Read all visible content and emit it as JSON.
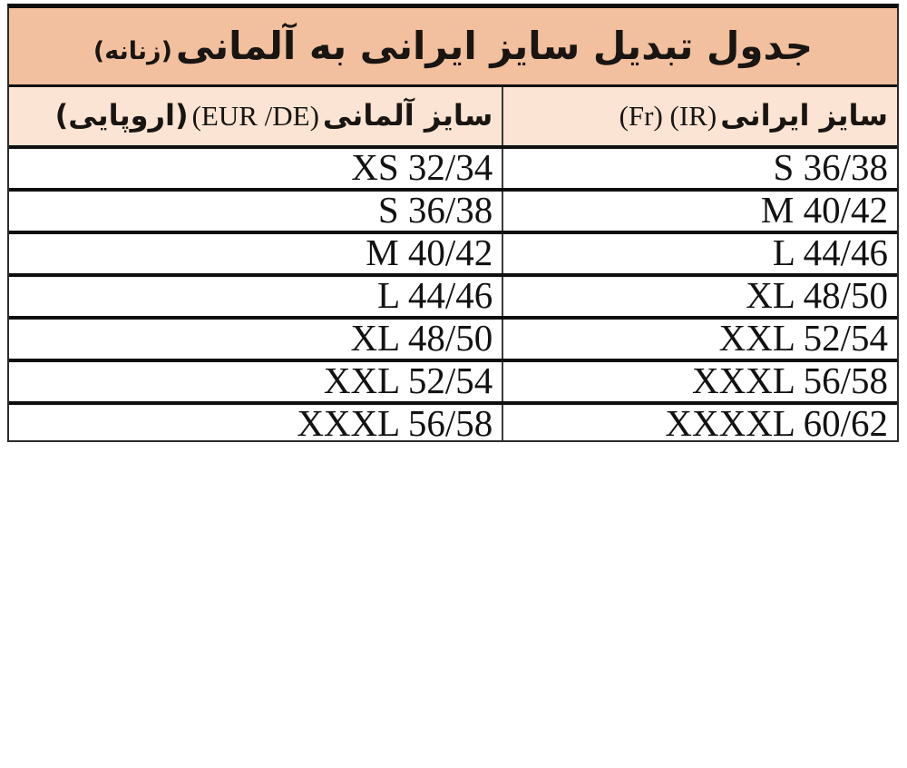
{
  "colors": {
    "title_bg": "#f2c09e",
    "header_bg": "#fbe4d3",
    "border": "#111111",
    "text": "#121212"
  },
  "table": {
    "title": {
      "main": "جدول تبدیل سایز ایرانی به آلمانی",
      "suffix": "(زنانه)"
    },
    "columns": {
      "iranian": {
        "fa": "سایز ایرانی",
        "latin": "(Fr) (IR)"
      },
      "german": {
        "fa": "سایز آلمانی",
        "latin": "(EUR /DE)",
        "fa_suffix": "(اروپایی)"
      }
    },
    "rows": [
      {
        "ir": "S 36/38",
        "de": "XS 32/34"
      },
      {
        "ir": "M 40/42",
        "de": "S 36/38"
      },
      {
        "ir": "L 44/46",
        "de": "M 40/42"
      },
      {
        "ir": "XL 48/50",
        "de": "L 44/46"
      },
      {
        "ir": "XXL 52/54",
        "de": "XL 48/50"
      },
      {
        "ir": "XXXL 56/58",
        "de": "XXL 52/54"
      },
      {
        "ir": "XXXXL 60/62",
        "de": "XXXL 56/58"
      }
    ]
  }
}
